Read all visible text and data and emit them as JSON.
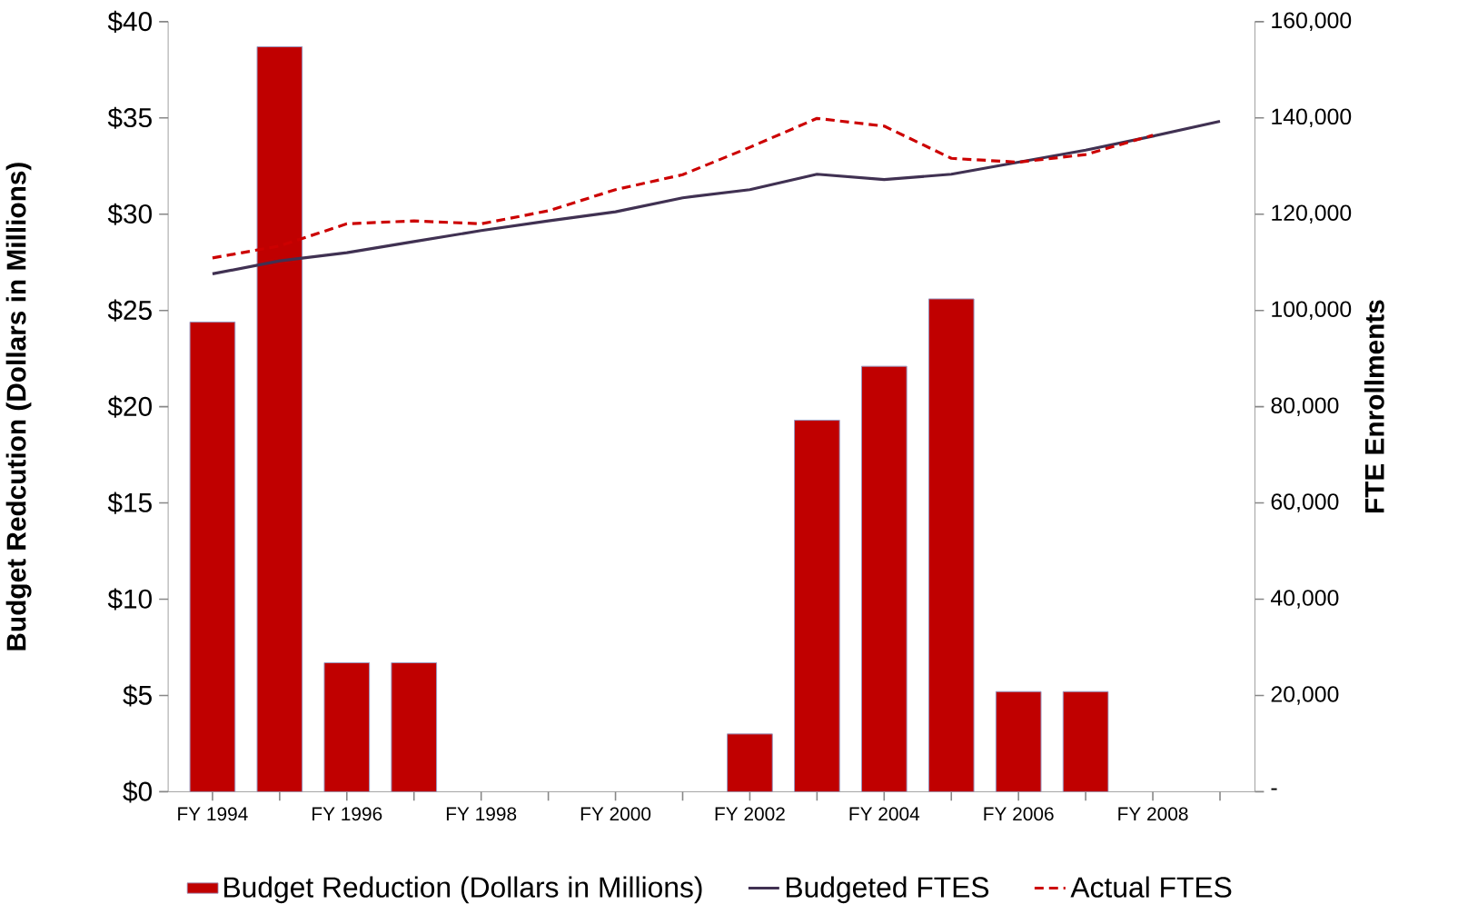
{
  "chart_data": {
    "type": "bar",
    "categories": [
      "FY 1994",
      null,
      "FY 1996",
      null,
      "FY 1998",
      null,
      "FY 2000",
      null,
      "FY 2002",
      null,
      "FY 2004",
      null,
      "FY 2006",
      null,
      "FY 2008",
      null
    ],
    "ylabel": "Budget Redcution (Dollars in Millions)",
    "y2label": "FTE Enrollments",
    "ylim": [
      0,
      40
    ],
    "yticks": [
      {
        "value": 0,
        "label": "$0"
      },
      {
        "value": 5,
        "label": "$5"
      },
      {
        "value": 10,
        "label": "$10"
      },
      {
        "value": 15,
        "label": "$15"
      },
      {
        "value": 20,
        "label": "$20"
      },
      {
        "value": 25,
        "label": "$25"
      },
      {
        "value": 30,
        "label": "$30"
      },
      {
        "value": 35,
        "label": "$35"
      },
      {
        "value": 40,
        "label": "$40"
      }
    ],
    "y2lim": [
      0,
      160000
    ],
    "y2ticks": [
      {
        "value": 0,
        "label": "-"
      },
      {
        "value": 20000,
        "label": "20,000"
      },
      {
        "value": 40000,
        "label": "40,000"
      },
      {
        "value": 60000,
        "label": "60,000"
      },
      {
        "value": 80000,
        "label": "80,000"
      },
      {
        "value": 100000,
        "label": "100,000"
      },
      {
        "value": 120000,
        "label": "120,000"
      },
      {
        "value": 140000,
        "label": "140,000"
      },
      {
        "value": 160000,
        "label": "160,000"
      }
    ],
    "legend": "bottom",
    "grid": false,
    "series": [
      {
        "name": "Budget Reduction (Dollars in Millions)",
        "color": "#c00000",
        "values": [
          24.4,
          38.7,
          6.7,
          6.7,
          null,
          null,
          null,
          null,
          3.0,
          19.3,
          22.1,
          25.6,
          5.2,
          5.2,
          null,
          null
        ]
      },
      {
        "name": "Budgeted FTES",
        "type": "line",
        "axis": "y2",
        "color": "#403152",
        "line_style": "solid",
        "values": [
          107600,
          110300,
          112000,
          114300,
          116600,
          118600,
          120500,
          123400,
          125100,
          128300,
          127200,
          128300,
          130800,
          133300,
          136200,
          139300
        ]
      },
      {
        "name": "Actual FTES",
        "type": "line",
        "axis": "y2",
        "color": "#cc0000",
        "line_style": "dashed",
        "values": [
          110900,
          113400,
          118000,
          118600,
          118000,
          120700,
          125100,
          128200,
          133900,
          139900,
          138300,
          131600,
          130800,
          132400,
          136400,
          null
        ]
      }
    ]
  }
}
